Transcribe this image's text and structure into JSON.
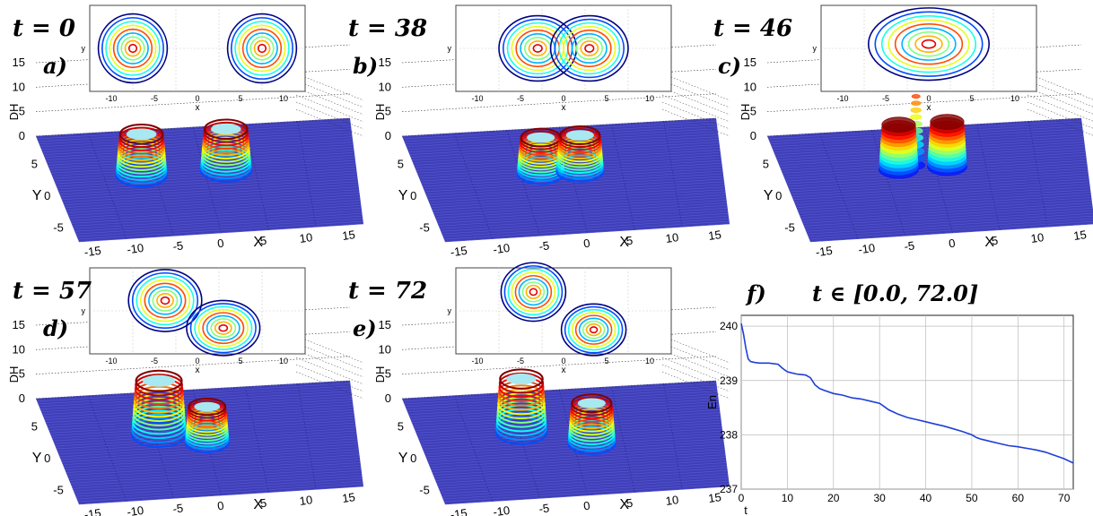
{
  "panels": [
    {
      "time_label": "t = 0",
      "panel_label": "a)"
    },
    {
      "time_label": "t = 38",
      "panel_label": "b)"
    },
    {
      "time_label": "t = 46",
      "panel_label": "c)"
    },
    {
      "time_label": "t = 57",
      "panel_label": "d)"
    },
    {
      "time_label": "t = 72",
      "panel_label": "e)"
    }
  ],
  "surface_axes": {
    "zlabel": "DH",
    "ylabel": "Y",
    "xlabel": "X",
    "z_ticks": [
      "15",
      "10",
      "5",
      "0"
    ],
    "y_ticks": [
      "5",
      "0",
      "-5"
    ],
    "x_ticks": [
      "-15",
      "-10",
      "-5",
      "0",
      "5",
      "10",
      "15"
    ]
  },
  "contour_axes": {
    "xlabel": "x",
    "ylabel": "y",
    "x_ticks": [
      "-10",
      "-5",
      "0",
      "5",
      "10"
    ]
  },
  "chart_data": {
    "type": "line",
    "panel_label": "f)",
    "title": "t ∈ [0.0, 72.0]",
    "xlabel": "t",
    "ylabel": "En",
    "xlim": [
      0,
      72
    ],
    "ylim": [
      237,
      240.2
    ],
    "x_ticks": [
      0,
      10,
      20,
      30,
      40,
      50,
      60,
      70
    ],
    "y_ticks": [
      237,
      238,
      239,
      240
    ],
    "grid": true,
    "series_color": "#1f3fd6",
    "series": [
      {
        "x": [
          0,
          0.5,
          1,
          1.5,
          2,
          3,
          4,
          6,
          8,
          9,
          10,
          11,
          12,
          13,
          14,
          15,
          16,
          17,
          18,
          20,
          22,
          24,
          26,
          28,
          30,
          31,
          32,
          33,
          34,
          36,
          38,
          40,
          42,
          44,
          46,
          48,
          50,
          51,
          52,
          54,
          56,
          58,
          60,
          62,
          64,
          66,
          68,
          70,
          72
        ],
        "y": [
          240.05,
          239.85,
          239.6,
          239.4,
          239.35,
          239.33,
          239.32,
          239.32,
          239.3,
          239.22,
          239.16,
          239.14,
          239.12,
          239.11,
          239.1,
          239.05,
          238.92,
          238.85,
          238.82,
          238.76,
          238.73,
          238.68,
          238.66,
          238.62,
          238.58,
          238.52,
          238.46,
          238.42,
          238.38,
          238.32,
          238.28,
          238.24,
          238.2,
          238.16,
          238.11,
          238.06,
          238.0,
          237.95,
          237.92,
          237.88,
          237.84,
          237.8,
          237.78,
          237.75,
          237.72,
          237.68,
          237.62,
          237.56,
          237.48
        ]
      }
    ]
  }
}
